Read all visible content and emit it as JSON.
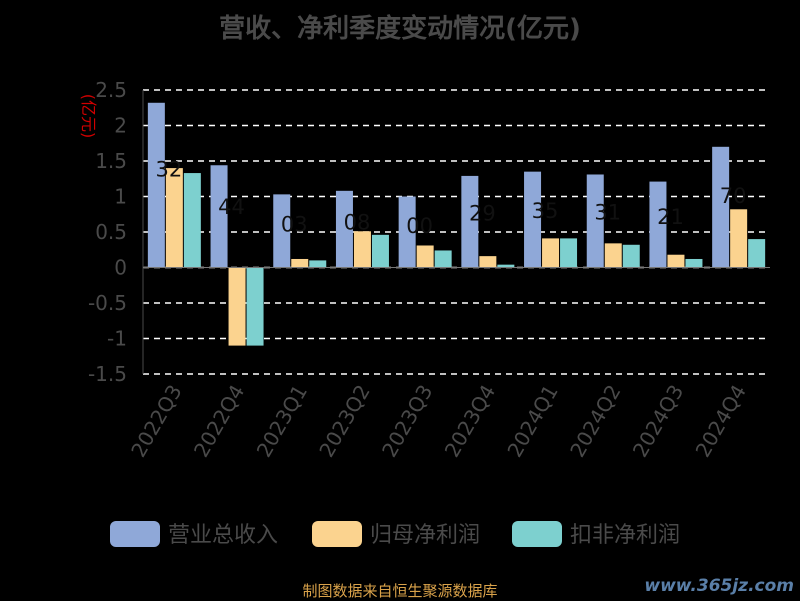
{
  "chart_data": {
    "type": "bar",
    "title": "营收、净利季度变动情况(亿元)",
    "ylabel": "(亿元)",
    "categories": [
      "2022Q3",
      "2022Q4",
      "2023Q1",
      "2023Q2",
      "2023Q3",
      "2023Q4",
      "2024Q1",
      "2024Q2",
      "2024Q3",
      "2024Q4"
    ],
    "ylim": [
      -1.5,
      2.5
    ],
    "yticks": [
      2.5,
      2,
      1.5,
      1,
      0.5,
      0,
      -0.5,
      -1,
      -1.5
    ],
    "grid": true,
    "legend_position": "bottom",
    "series": [
      {
        "name": "营业总收入",
        "color": "#8fa8d8",
        "values": [
          2.32,
          1.44,
          1.03,
          1.08,
          1.0,
          1.29,
          1.35,
          1.31,
          1.21,
          1.7
        ]
      },
      {
        "name": "归母净利润",
        "color": "#fbd38f",
        "values": [
          1.4,
          -1.1,
          0.12,
          0.51,
          0.31,
          0.16,
          0.41,
          0.34,
          0.18,
          0.82
        ]
      },
      {
        "name": "扣非净利润",
        "color": "#7dd0cf",
        "values": [
          1.33,
          -1.1,
          0.1,
          0.46,
          0.24,
          0.04,
          0.41,
          0.32,
          0.12,
          0.4
        ]
      }
    ],
    "data_labels": [
      "32",
      "44",
      "03",
      "08",
      "00",
      "29",
      "35",
      "31",
      "21",
      "70"
    ]
  },
  "footer": {
    "source": "制图数据来自恒生聚源数据库",
    "watermark": "www.365jz.com"
  }
}
